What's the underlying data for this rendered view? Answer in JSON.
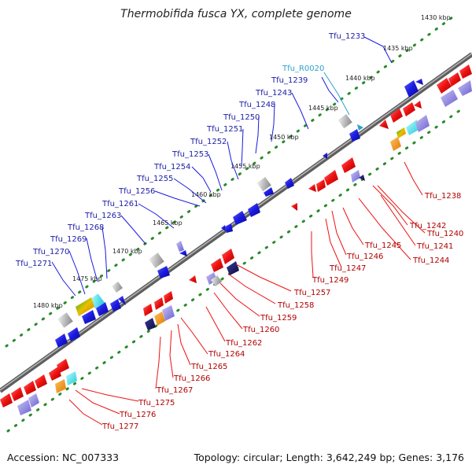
{
  "title": "Thermobifida fusca YX, complete genome",
  "accession": "Accession: NC_007333",
  "summary": "Topology: circular; Length: 3,642,249 bp; Genes: 3,176",
  "ticks": [
    "1430 kbp",
    "1435 kbp",
    "1440 kbp",
    "1445 kbp",
    "1450 kbp",
    "1455 kbp",
    "1460 kbp",
    "1465 kbp",
    "1470 kbp",
    "1475 kbp",
    "1480 kbp"
  ],
  "upper_genes": [
    "Tfu_1233",
    "Tfu_1239",
    "Tfu_1243",
    "Tfu_1248",
    "Tfu_1250",
    "Tfu_1251",
    "Tfu_1252",
    "Tfu_1253",
    "Tfu_1254",
    "Tfu_1255",
    "Tfu_1256",
    "Tfu_1261",
    "Tfu_1263",
    "Tfu_1268",
    "Tfu_1269",
    "Tfu_1270",
    "Tfu_1271"
  ],
  "rna_gene": "Tfu_R0020",
  "lower_genes": [
    "Tfu_1238",
    "Tfu_1240",
    "Tfu_1241",
    "Tfu_1242",
    "Tfu_1244",
    "Tfu_1245",
    "Tfu_1246",
    "Tfu_1247",
    "Tfu_1249",
    "Tfu_1257",
    "Tfu_1258",
    "Tfu_1259",
    "Tfu_1260",
    "Tfu_1262",
    "Tfu_1264",
    "Tfu_1265",
    "Tfu_1266",
    "Tfu_1267",
    "Tfu_1275",
    "Tfu_1276",
    "Tfu_1277"
  ],
  "colors": {
    "forward": "#1a1ae0",
    "reverse": "#ee1111",
    "rna": "#2ba3cc",
    "backbone": "#6a6a6a",
    "grid": "#2a8a2a"
  }
}
